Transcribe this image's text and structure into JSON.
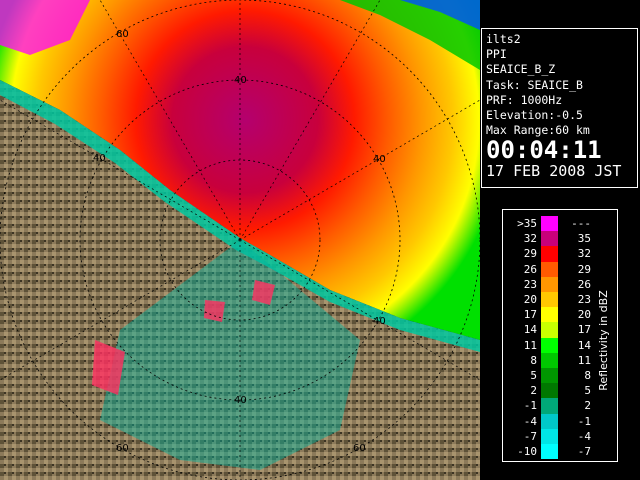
{
  "info": {
    "station": "ilts2",
    "scan_type": "PPI",
    "product": "SEAICE_B_Z",
    "task": "Task: SEAICE_B",
    "prf": "PRF: 1000Hz",
    "elevation": "Elevation:-0.5",
    "max_range": "Max Range:60 km",
    "time": "00:04:11",
    "date": "17 FEB 2008 JST"
  },
  "legend": {
    "title": "Reflectivity in dBZ",
    "rows": [
      {
        "lo": ">35",
        "hi": "---",
        "color": "#ff00ff"
      },
      {
        "lo": "32",
        "hi": "35",
        "color": "#c8007a"
      },
      {
        "lo": "29",
        "hi": "32",
        "color": "#ff0000"
      },
      {
        "lo": "26",
        "hi": "29",
        "color": "#ff5a00"
      },
      {
        "lo": "23",
        "hi": "26",
        "color": "#ff9600"
      },
      {
        "lo": "20",
        "hi": "23",
        "color": "#ffc800"
      },
      {
        "lo": "17",
        "hi": "20",
        "color": "#ffff00"
      },
      {
        "lo": "14",
        "hi": "17",
        "color": "#c8ff00"
      },
      {
        "lo": "11",
        "hi": "14",
        "color": "#00ff00"
      },
      {
        "lo": "8",
        "hi": "11",
        "color": "#00c800"
      },
      {
        "lo": "5",
        "hi": "8",
        "color": "#009600"
      },
      {
        "lo": "2",
        "hi": "5",
        "color": "#007800"
      },
      {
        "lo": "-1",
        "hi": "2",
        "color": "#00a878"
      },
      {
        "lo": "-4",
        "hi": "-1",
        "color": "#00c8c8"
      },
      {
        "lo": "-7",
        "hi": "-4",
        "color": "#00e6e6"
      },
      {
        "lo": "-10",
        "hi": "-7",
        "color": "#00ffff"
      }
    ]
  },
  "range_rings": {
    "label_40": "40",
    "label_60": "60"
  },
  "colors": {
    "land": "#8c7a5a",
    "background": "#000000",
    "panel_border": "#ffffff"
  }
}
